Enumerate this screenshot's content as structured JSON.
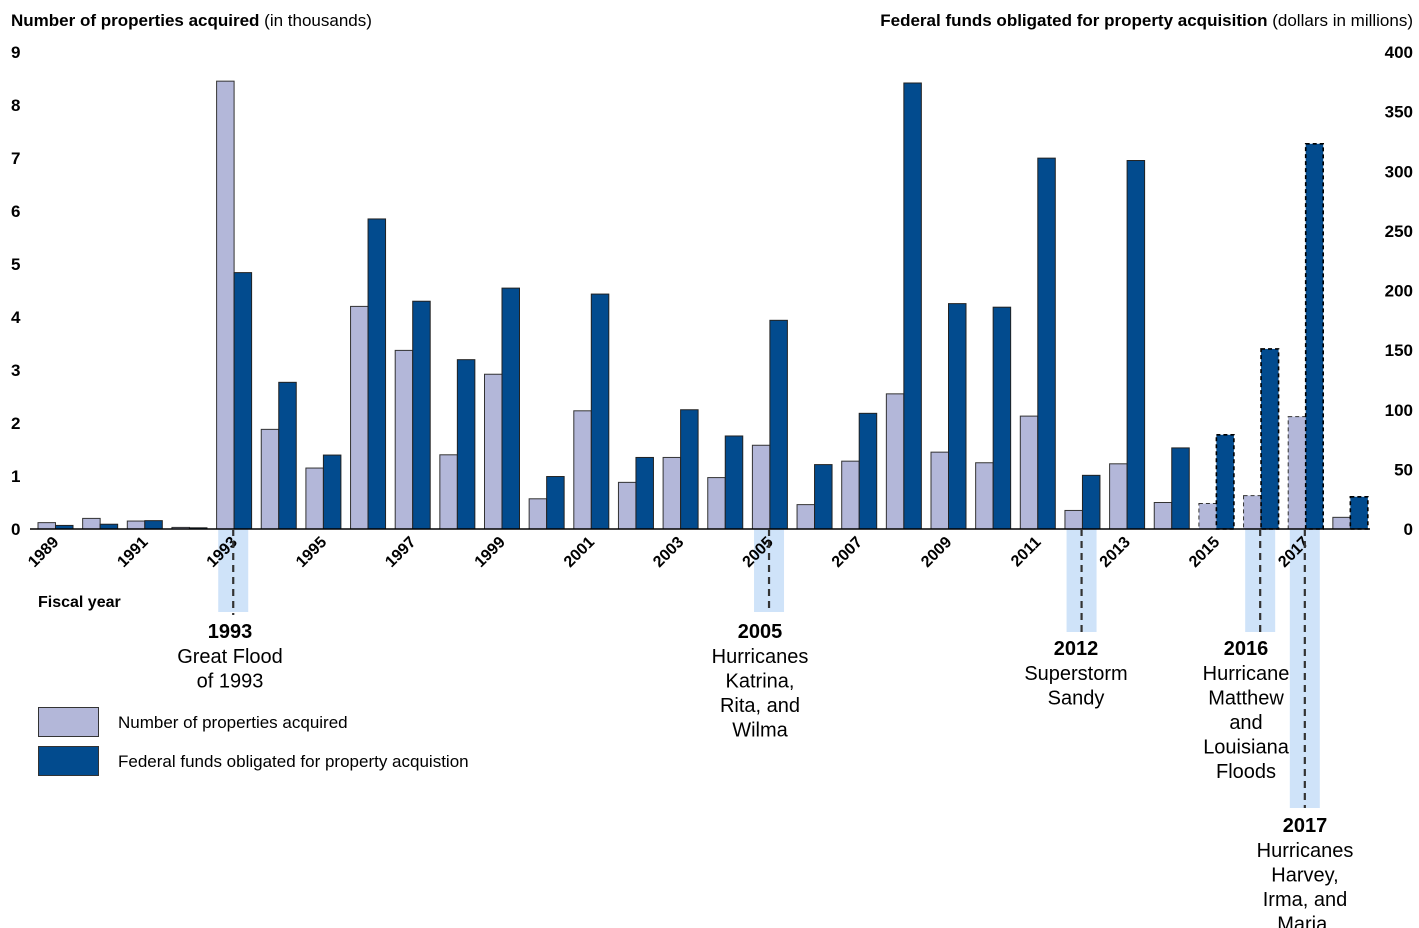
{
  "chart_data": {
    "type": "bar",
    "left_axis_title_bold": "Number of properties acquired",
    "left_axis_title_unit": " (in thousands)",
    "right_axis_title_bold": "Federal funds obligated for property acquisition",
    "right_axis_title_unit": " (dollars in millions)",
    "xlabel": "Fiscal year",
    "left_ylim": [
      0,
      9
    ],
    "right_ylim": [
      0,
      400
    ],
    "left_ticks": [
      "0",
      "1",
      "2",
      "3",
      "4",
      "5",
      "6",
      "7",
      "8",
      "9"
    ],
    "right_ticks": [
      "0",
      "50",
      "100",
      "150",
      "200",
      "250",
      "300",
      "350",
      "400"
    ],
    "x_tick_labels": [
      "1989",
      "1991",
      "1993",
      "1995",
      "1997",
      "1999",
      "2001",
      "2003",
      "2005",
      "2007",
      "2009",
      "2011",
      "2013",
      "2015",
      "2017"
    ],
    "categories": [
      "1989",
      "1990",
      "1991",
      "1992",
      "1993",
      "1994",
      "1995",
      "1996",
      "1997",
      "1998",
      "1999",
      "2000",
      "2001",
      "2002",
      "2003",
      "2004",
      "2005",
      "2006",
      "2007",
      "2008",
      "2009",
      "2010",
      "2011",
      "2012",
      "2013",
      "2014",
      "2015",
      "2016",
      "2017",
      "2018"
    ],
    "series": [
      {
        "name": "Number of properties acquired",
        "axis": "left",
        "color": "#b3b7d9",
        "values": [
          0.12,
          0.2,
          0.15,
          0.03,
          8.45,
          1.88,
          1.15,
          4.2,
          3.37,
          1.4,
          2.92,
          0.57,
          2.23,
          0.88,
          1.35,
          0.97,
          1.58,
          0.46,
          1.28,
          2.55,
          1.45,
          1.25,
          2.13,
          0.35,
          1.23,
          0.5,
          0.48,
          0.63,
          2.12,
          0.22
        ],
        "estimated_from": [
          false,
          false,
          false,
          false,
          false,
          false,
          false,
          false,
          false,
          false,
          false,
          false,
          false,
          false,
          false,
          false,
          false,
          false,
          false,
          false,
          false,
          false,
          false,
          false,
          false,
          false,
          true,
          true,
          true,
          false
        ]
      },
      {
        "name": "Federal funds obligated for property acquistion",
        "axis": "right",
        "color": "#024b8e",
        "values": [
          3,
          4,
          7,
          1,
          215,
          123,
          62,
          260,
          191,
          142,
          202,
          44,
          197,
          60,
          100,
          78,
          175,
          54,
          97,
          374,
          189,
          186,
          311,
          45,
          309,
          68,
          79,
          151,
          323,
          27
        ],
        "dashed_outline": [
          false,
          false,
          false,
          false,
          false,
          false,
          false,
          false,
          false,
          false,
          false,
          false,
          false,
          false,
          false,
          false,
          false,
          false,
          false,
          false,
          false,
          false,
          false,
          false,
          false,
          false,
          true,
          true,
          true,
          true
        ]
      }
    ],
    "legend": {
      "placement": "bottom-left"
    },
    "grid": false,
    "annotations": [
      {
        "year": "1993",
        "lines": [
          "Great Flood",
          "of 1993"
        ]
      },
      {
        "year": "2005",
        "lines": [
          "Hurricanes",
          "Katrina,",
          "Rita, and",
          "Wilma"
        ]
      },
      {
        "year": "2012",
        "lines": [
          "Superstorm",
          "Sandy"
        ]
      },
      {
        "year": "2016",
        "lines": [
          "Hurricane",
          "Matthew",
          "and",
          "Louisiana",
          "Floods"
        ]
      },
      {
        "year": "2017",
        "lines": [
          "Hurricanes",
          "Harvey,",
          "Irma, and",
          "Maria."
        ]
      }
    ],
    "highlight_color": "#cfe3f9"
  }
}
